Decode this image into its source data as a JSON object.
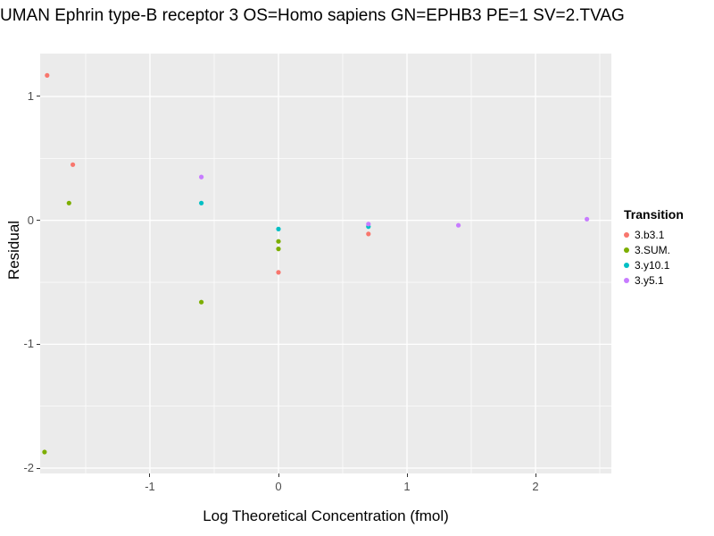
{
  "title": "UMAN Ephrin type-B receptor 3 OS=Homo sapiens GN=EPHB3 PE=1 SV=2.TVAG",
  "axes": {
    "x_label": "Log Theoretical Concentration (fmol)",
    "y_label": "Residual"
  },
  "legend": {
    "title": "Transition"
  },
  "colors": {
    "panel_bg": "#EBEBEB",
    "grid": "#FFFFFF",
    "axis_text": "#4D4D4D",
    "tick_mark": "#333333"
  },
  "chart_data": {
    "type": "scatter",
    "title": "UMAN Ephrin type-B receptor 3 OS=Homo sapiens GN=EPHB3 PE=1 SV=2.TVAG",
    "xlabel": "Log Theoretical Concentration (fmol)",
    "ylabel": "Residual",
    "xlim": [
      -1.854,
      2.59
    ],
    "ylim": [
      -2.043,
      1.346
    ],
    "x_ticks": [
      -1,
      0,
      1,
      2
    ],
    "y_ticks": [
      -2,
      -1,
      0,
      1
    ],
    "x_minor": [
      -1.5,
      -0.5,
      0.5,
      1.5,
      2.5
    ],
    "y_minor": [
      -1.5,
      -0.5,
      0.5
    ],
    "grid": true,
    "legend_position": "right",
    "series": [
      {
        "name": "3.b3.1",
        "color": "#F8766D",
        "points": [
          [
            -1.8,
            1.17
          ],
          [
            -1.6,
            0.45
          ],
          [
            0.0,
            -0.42
          ],
          [
            0.7,
            -0.11
          ]
        ]
      },
      {
        "name": "3.SUM.",
        "color": "#7CAE00",
        "points": [
          [
            -1.82,
            -1.87
          ],
          [
            -1.63,
            0.14
          ],
          [
            -0.6,
            -0.66
          ],
          [
            0.0,
            -0.17
          ],
          [
            0.0,
            -0.23
          ]
        ]
      },
      {
        "name": "3.y10.1",
        "color": "#00BFC4",
        "points": [
          [
            -0.6,
            0.14
          ],
          [
            0.0,
            -0.07
          ],
          [
            0.7,
            -0.05
          ]
        ]
      },
      {
        "name": "3.y5.1",
        "color": "#C77CFF",
        "points": [
          [
            -0.6,
            0.35
          ],
          [
            0.7,
            -0.03
          ],
          [
            1.4,
            -0.04
          ],
          [
            2.4,
            0.01
          ]
        ]
      }
    ]
  }
}
